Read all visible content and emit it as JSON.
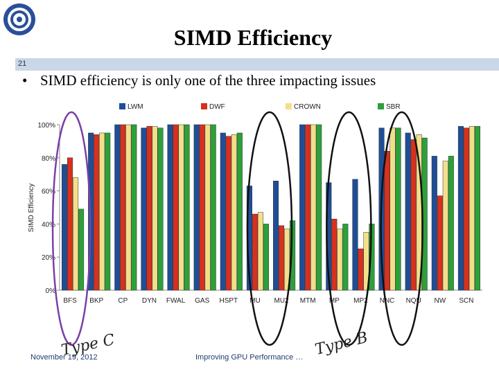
{
  "slide": {
    "title": "SIMD Efficiency",
    "number": "21",
    "bullet": "SIMD efficiency is only one of the three impacting issues",
    "footer_date": "November 19, 2012",
    "footer_center": "Improving GPU Performance …",
    "annotation_c": "Type C",
    "annotation_b": "Type B"
  },
  "colors": {
    "LWM": "#1f4e96",
    "DWF": "#d7301f",
    "CROWN": "#f2df8a",
    "SBR": "#2da03a",
    "header_bar": "#c9d7e8",
    "circle_purple": "#7b3fa8",
    "circle_black": "#111111"
  },
  "chart_data": {
    "type": "bar",
    "title": "",
    "xlabel": "",
    "ylabel": "SIMD Efficiency",
    "ylim": [
      0,
      100
    ],
    "yticks": [
      "0%",
      "20%",
      "40%",
      "60%",
      "80%",
      "100%"
    ],
    "legend_position": "top",
    "categories": [
      "BFS",
      "BKP",
      "CP",
      "DYN",
      "FWAL",
      "GAS",
      "HSPT",
      "MU",
      "MU2",
      "MTM",
      "MP",
      "MP2",
      "NNC",
      "NQU",
      "NW",
      "SCN"
    ],
    "series": [
      {
        "name": "LWM",
        "values": [
          76,
          95,
          100,
          98,
          100,
          100,
          95,
          63,
          66,
          100,
          65,
          67,
          98,
          95,
          81,
          99
        ]
      },
      {
        "name": "DWF",
        "values": [
          80,
          94,
          100,
          99,
          100,
          100,
          93,
          46,
          39,
          100,
          43,
          25,
          84,
          91,
          57,
          98
        ]
      },
      {
        "name": "CROWN",
        "values": [
          68,
          95,
          100,
          99,
          100,
          100,
          94,
          47,
          37,
          100,
          37,
          35,
          98,
          94,
          78,
          99
        ]
      },
      {
        "name": "SBR",
        "values": [
          49,
          95,
          100,
          98,
          100,
          100,
          95,
          40,
          42,
          100,
          40,
          40,
          98,
          92,
          81,
          99
        ]
      }
    ]
  }
}
